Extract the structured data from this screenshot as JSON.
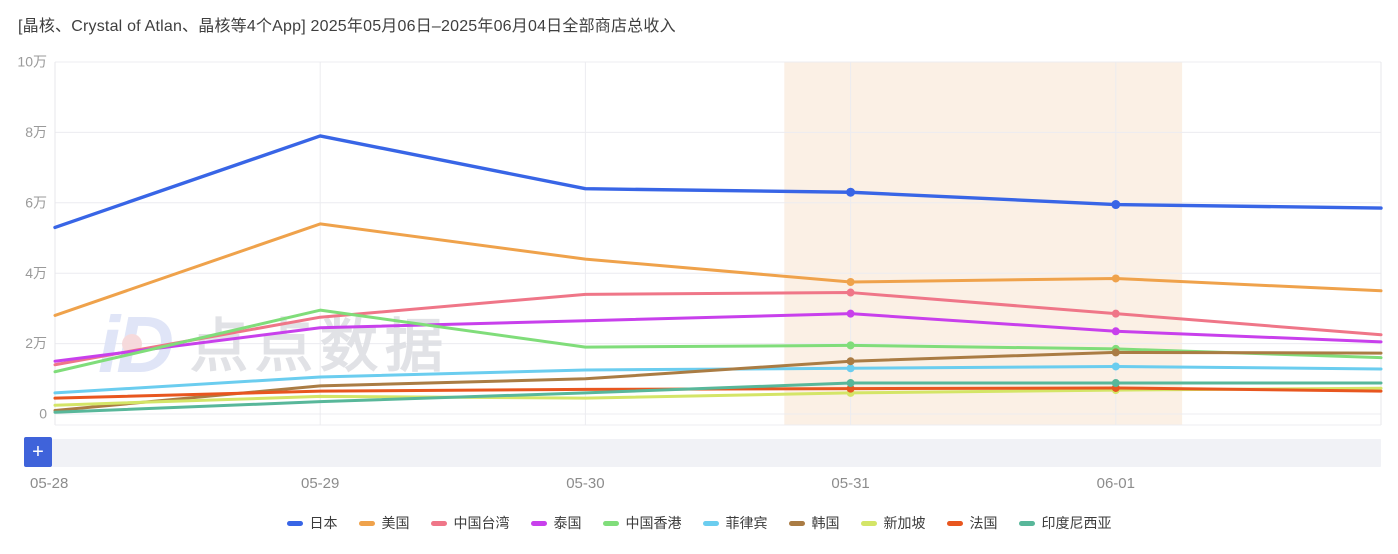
{
  "page": {
    "title": "[晶核、Crystal of Atlan、晶核等4个App] 2025年05月06日–2025年06月04日全部商店总收入"
  },
  "toolbar": {
    "add_button_label": "+"
  },
  "watermark": {
    "logo_text": "iD",
    "text": "点点数据"
  },
  "chart_data": {
    "type": "line",
    "title": "[晶核、Crystal of Atlan、晶核等4个App] 2025年05月06日–2025年06月04日全部商店总收入",
    "x_tick_labels": [
      "05-28",
      "05-29",
      "05-30",
      "05-31",
      "06-01"
    ],
    "x_points": [
      "05-28",
      "05-29",
      "05-30",
      "05-31",
      "06-01",
      ""
    ],
    "x_points_note": "last point is the clipped right edge of the plot (next day, unlabeled)",
    "y_tick_labels": [
      "10万",
      "8万",
      "6万",
      "4万",
      "2万",
      "0"
    ],
    "y_unit": "万",
    "ylim_wan": [
      0,
      10
    ],
    "grid": true,
    "legend_position": "bottom",
    "marker_indices": [
      3,
      4
    ],
    "highlight_band": {
      "x_start_frac_index": 2.75,
      "x_end_frac_index": 4.25,
      "color": "#fbf0e5"
    },
    "series": [
      {
        "key": "japan",
        "name": "日本",
        "color": "#3865e6",
        "values_wan": [
          5.3,
          7.9,
          6.4,
          6.3,
          5.95,
          5.85
        ]
      },
      {
        "key": "usa",
        "name": "美国",
        "color": "#efa24b",
        "values_wan": [
          2.8,
          5.4,
          4.4,
          3.75,
          3.85,
          3.5
        ]
      },
      {
        "key": "taiwan",
        "name": "中国台湾",
        "color": "#ef7688",
        "values_wan": [
          1.4,
          2.75,
          3.4,
          3.45,
          2.85,
          2.25
        ]
      },
      {
        "key": "thailand",
        "name": "泰国",
        "color": "#c840ec",
        "values_wan": [
          1.5,
          2.45,
          2.65,
          2.85,
          2.35,
          2.05
        ]
      },
      {
        "key": "hongkong",
        "name": "中国香港",
        "color": "#80dd7a",
        "values_wan": [
          1.2,
          2.95,
          1.9,
          1.95,
          1.85,
          1.6
        ]
      },
      {
        "key": "philippines",
        "name": "菲律宾",
        "color": "#6bcdef",
        "values_wan": [
          0.6,
          1.05,
          1.25,
          1.3,
          1.35,
          1.28
        ]
      },
      {
        "key": "korea",
        "name": "韩国",
        "color": "#aa7c44",
        "values_wan": [
          0.1,
          0.8,
          1.0,
          1.5,
          1.75,
          1.73
        ]
      },
      {
        "key": "singapore",
        "name": "新加坡",
        "color": "#d4e567",
        "values_wan": [
          0.25,
          0.5,
          0.45,
          0.6,
          0.68,
          0.73
        ]
      },
      {
        "key": "france",
        "name": "法国",
        "color": "#e8561f",
        "values_wan": [
          0.45,
          0.65,
          0.7,
          0.72,
          0.74,
          0.65
        ]
      },
      {
        "key": "indonesia",
        "name": "印度尼西亚",
        "color": "#58b79a",
        "values_wan": [
          0.05,
          0.35,
          0.6,
          0.88,
          0.88,
          0.88
        ]
      }
    ]
  }
}
